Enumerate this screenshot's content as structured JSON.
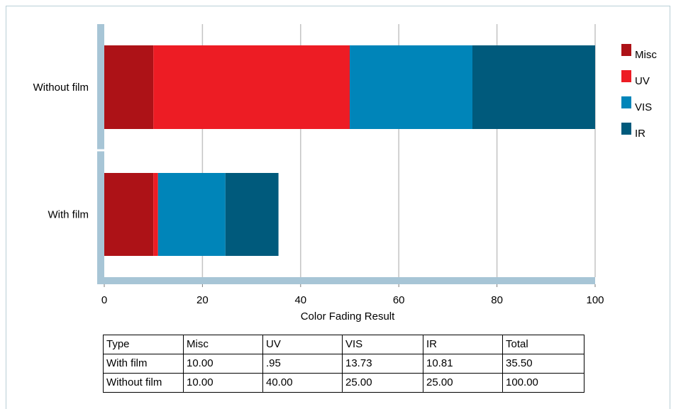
{
  "chart_data": {
    "type": "bar",
    "orientation": "horizontal",
    "stacked": true,
    "categories": [
      "Without film",
      "With film"
    ],
    "series": [
      {
        "name": "Misc",
        "values": [
          10.0,
          10.0
        ],
        "color": "#ad1217"
      },
      {
        "name": "UV",
        "values": [
          40.0,
          0.95
        ],
        "color": "#ed1c24"
      },
      {
        "name": "VIS",
        "values": [
          25.0,
          13.73
        ],
        "color": "#0085b9"
      },
      {
        "name": "IR",
        "values": [
          25.0,
          10.81
        ],
        "color": "#005a7c"
      }
    ],
    "xlabel": "Color Fading Result",
    "xlim": [
      0,
      100
    ],
    "xticks": [
      0,
      20,
      40,
      60,
      80,
      100
    ],
    "grid": true,
    "legend": "right"
  },
  "table": {
    "header": [
      "Type",
      "Misc",
      "UV",
      "VIS",
      "IR",
      "Total"
    ],
    "rows": [
      [
        "With film",
        "10.00",
        ".95",
        "13.73",
        "10.81",
        "35.50"
      ],
      [
        "Without film",
        "10.00",
        "40.00",
        "25.00",
        "25.00",
        "100.00"
      ]
    ]
  },
  "colors": {
    "axis": "#a7c5d6",
    "grid": "#c3c3c3",
    "frame": "#b9cfd6"
  }
}
